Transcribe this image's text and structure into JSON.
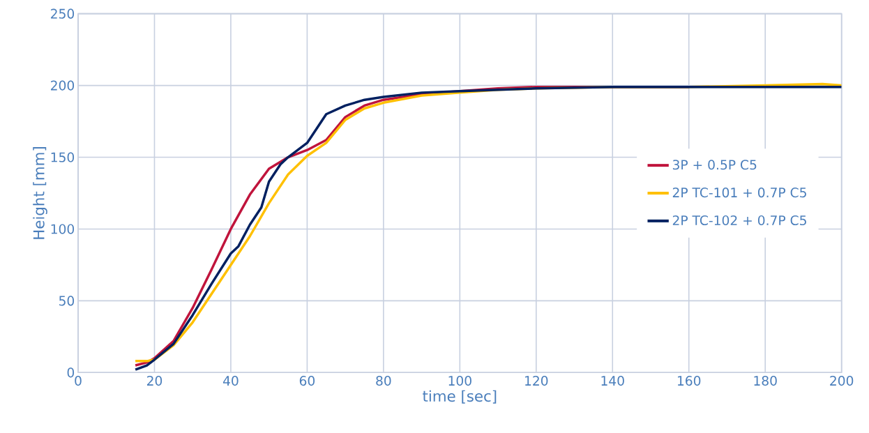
{
  "chart_data": {
    "type": "line",
    "xlabel": "time [sec]",
    "ylabel": "Height [mm]",
    "xlim": [
      0,
      200
    ],
    "xticks": [
      0,
      20,
      40,
      60,
      80,
      100,
      120,
      140,
      160,
      180,
      200
    ],
    "ylim": [
      0,
      250
    ],
    "yticks": [
      0,
      50,
      100,
      150,
      200,
      250
    ],
    "grid": true,
    "legend": "right",
    "line_style": "solid",
    "marker": "none",
    "series": [
      {
        "name": "3P + 0.5P C5",
        "color": "#c0143c",
        "x": [
          15,
          18,
          20,
          25,
          30,
          35,
          40,
          45,
          50,
          55,
          60,
          65,
          70,
          75,
          80,
          90,
          100,
          110,
          120,
          140,
          160
        ],
        "values": [
          5,
          7,
          10,
          22,
          45,
          72,
          100,
          124,
          142,
          150,
          155,
          162,
          178,
          186,
          190,
          194,
          196,
          198,
          199,
          199,
          199
        ]
      },
      {
        "name": "2P TC-101 + 0.7P C5",
        "color": "#ffc000",
        "x": [
          15,
          18,
          20,
          25,
          30,
          35,
          40,
          45,
          50,
          55,
          60,
          65,
          70,
          75,
          80,
          90,
          100,
          110,
          120,
          140,
          160,
          180,
          195,
          200
        ],
        "values": [
          8,
          8,
          9,
          19,
          35,
          55,
          75,
          95,
          118,
          138,
          151,
          160,
          176,
          184,
          188,
          193,
          195,
          197,
          198,
          199,
          199,
          200,
          201,
          200
        ]
      },
      {
        "name": "2P TC-102 + 0.7P C5",
        "color": "#002060",
        "x": [
          15,
          18,
          20,
          25,
          30,
          35,
          40,
          42,
          45,
          48,
          50,
          53,
          55,
          60,
          63,
          65,
          70,
          75,
          80,
          90,
          100,
          110,
          120,
          140,
          160,
          180,
          200
        ],
        "values": [
          2,
          5,
          9,
          20,
          40,
          62,
          83,
          88,
          103,
          115,
          133,
          145,
          150,
          160,
          172,
          180,
          186,
          190,
          192,
          195,
          196,
          197,
          198,
          199,
          199,
          199,
          199
        ]
      }
    ]
  }
}
